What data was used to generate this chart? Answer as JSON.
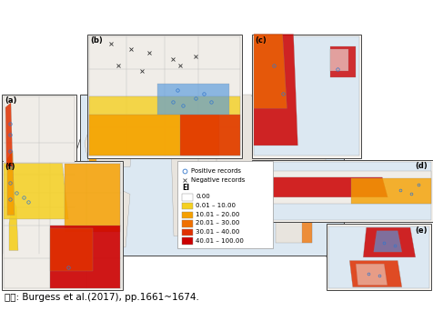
{
  "caption": "자료: Burgess et al.(2017), pp.1661~1674.",
  "caption_fontsize": 7.5,
  "background_color": "#ffffff",
  "panel_bg": "#f5f2ee",
  "world_bg": "#dce8f0",
  "land_color": "#e8e4de",
  "border_color": "#444444",
  "legend": {
    "positive_records": "Positive records",
    "negative_records": "Negative records",
    "ei_label": "EI",
    "colors": [
      "#ffffff",
      "#f5d020",
      "#f5a000",
      "#f07000",
      "#e03000",
      "#cc0000"
    ],
    "edge_colors": [
      "#aaaaaa",
      "#aaaaaa",
      "#aaaaaa",
      "#aaaaaa",
      "#aaaaaa",
      "#aaaaaa"
    ],
    "labels": [
      "0.00",
      "0.01 – 10.00",
      "10.01 – 20.00",
      "20.01 – 30.00",
      "30.01 – 40.00",
      "40.01 – 100.00"
    ]
  },
  "fig_width": 4.76,
  "fig_height": 3.42,
  "dpi": 100
}
